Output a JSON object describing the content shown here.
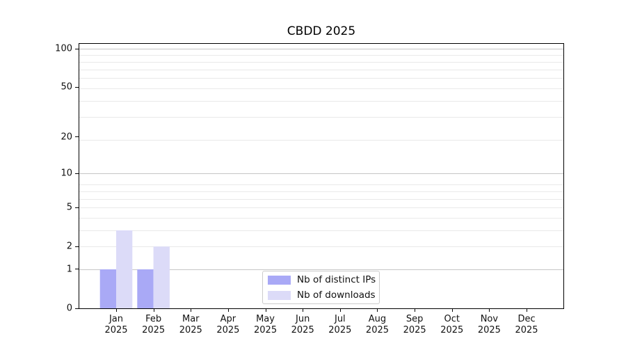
{
  "chart_data": {
    "type": "bar",
    "title": "CBDD 2025",
    "months": [
      "Jan",
      "Feb",
      "Mar",
      "Apr",
      "May",
      "Jun",
      "Jul",
      "Aug",
      "Sep",
      "Oct",
      "Nov",
      "Dec"
    ],
    "year": "2025",
    "series": [
      {
        "name": "Nb of distinct IPs",
        "color": "#a9a9f6",
        "values": [
          1,
          1,
          0,
          0,
          0,
          0,
          0,
          0,
          0,
          0,
          0,
          0
        ]
      },
      {
        "name": "Nb of downloads",
        "color": "#dcdbf8",
        "values": [
          3,
          2,
          0,
          0,
          0,
          0,
          0,
          0,
          0,
          0,
          0,
          0
        ]
      }
    ],
    "yscale": "log10(1+v)",
    "ylim": [
      0,
      100
    ],
    "yticks": [
      0,
      1,
      2,
      5,
      10,
      20,
      50,
      100
    ],
    "ytick_labels": [
      "0",
      "1",
      "2",
      "5",
      "10",
      "20",
      "50",
      "100"
    ],
    "grid": {
      "on": true,
      "major_lines": [
        1,
        10,
        100
      ],
      "minor_lines": [
        2,
        3,
        4,
        5,
        6,
        7,
        8,
        19,
        29,
        39,
        49,
        59,
        69,
        79,
        89
      ]
    },
    "legend_position": "lower-center-inside"
  }
}
